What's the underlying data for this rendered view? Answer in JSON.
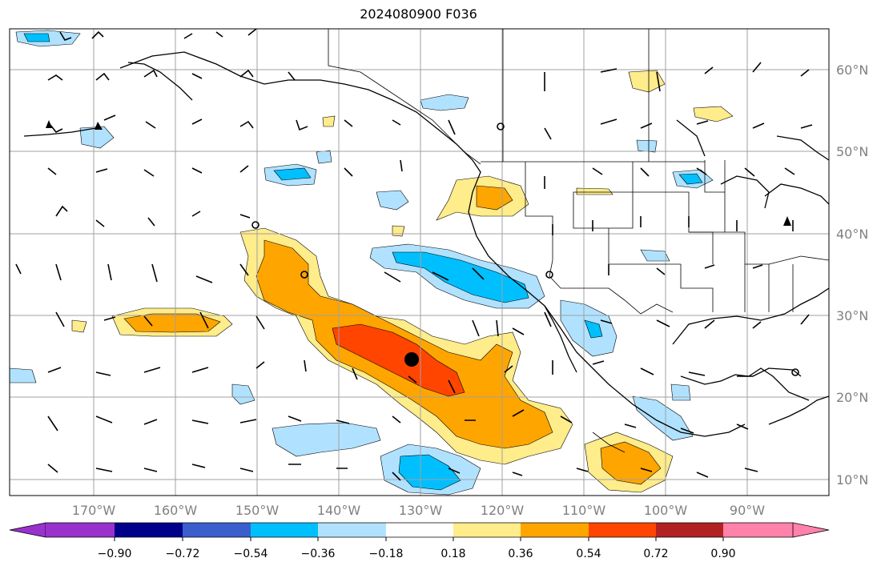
{
  "title": "2024080900 F036",
  "map": {
    "lat_labels": [
      "60°N",
      "50°N",
      "40°N",
      "30°N",
      "20°N",
      "10°N"
    ],
    "lon_labels": [
      "170°W",
      "160°W",
      "150°W",
      "140°W",
      "130°W",
      "120°W",
      "110°W",
      "100°W",
      "90°W"
    ],
    "central_marker": {
      "lon": -130.5,
      "lat": 24.5
    }
  },
  "colorbar": {
    "tick_labels": [
      "−0.90",
      "−0.72",
      "−0.54",
      "−0.36",
      "−0.18",
      "0.18",
      "0.36",
      "0.54",
      "0.72",
      "0.90"
    ],
    "colors": [
      "#9932cc",
      "#00008b",
      "#3a5fcd",
      "#00bfff",
      "#b0e2ff",
      "#ffffff",
      "#ffec8b",
      "#ffa500",
      "#ff4500",
      "#b22222",
      "#ff82ab"
    ]
  }
}
